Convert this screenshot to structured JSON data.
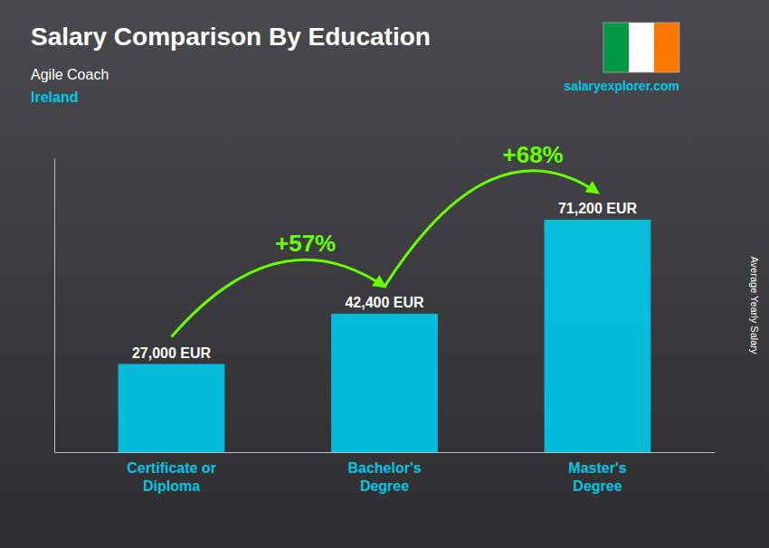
{
  "chart_data": {
    "type": "bar",
    "title": "Salary Comparison By Education",
    "subtitle": [
      "Agile Coach",
      "Ireland"
    ],
    "ylabel": "Average Yearly Salary",
    "categories": [
      "Certificate or\nDiploma",
      "Bachelor's\nDegree",
      "Master's\nDegree"
    ],
    "values": [
      27000,
      42400,
      71200
    ],
    "value_labels": [
      "27,000 EUR",
      "42,400 EUR",
      "71,200 EUR"
    ],
    "color": "#00c8e8",
    "ylim": [
      0,
      90000
    ],
    "data_labels": true,
    "tick_labels": "x",
    "grid": false,
    "annotations": [
      "+57%",
      "+68%"
    ],
    "source": "salaryexplorer.com"
  }
}
